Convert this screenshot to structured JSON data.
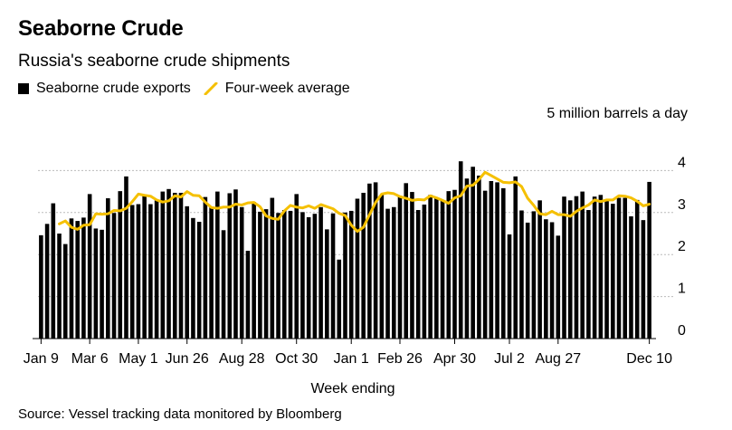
{
  "header": {
    "title": "Seaborne Crude",
    "subtitle": "Russia's seaborne crude shipments"
  },
  "legend": {
    "bars_label": "Seaborne crude exports",
    "line_label": "Four-week average"
  },
  "footer": {
    "source": "Source: Vessel tracking data monitored by Bloomberg"
  },
  "colors": {
    "bars": "#000000",
    "line": "#f5c000",
    "grid": "#bbbbbb"
  },
  "chart_data": {
    "type": "bar",
    "title": "Seaborne Crude",
    "subtitle": "Russia's seaborne crude shipments",
    "xlabel": "Week ending",
    "ylabel": "5 million barrels a day",
    "ylim": [
      0,
      5
    ],
    "yticks": [
      0,
      1,
      2,
      3,
      4
    ],
    "grid": true,
    "legend_position": "top-left",
    "x_tick_labels": [
      {
        "label": "Jan 9",
        "index": 0
      },
      {
        "label": "Mar 6",
        "index": 8
      },
      {
        "label": "May 1",
        "index": 16
      },
      {
        "label": "Jun 26",
        "index": 24
      },
      {
        "label": "Aug 28",
        "index": 33
      },
      {
        "label": "Oct 30",
        "index": 42
      },
      {
        "label": "Jan 1",
        "index": 51
      },
      {
        "label": "Feb 26",
        "index": 59
      },
      {
        "label": "Apr 30",
        "index": 68
      },
      {
        "label": "Jul 2",
        "index": 77
      },
      {
        "label": "Aug 27",
        "index": 85
      },
      {
        "label": "Dec 10",
        "index": 100
      }
    ],
    "series": [
      {
        "name": "Seaborne crude exports",
        "type": "bar",
        "values": [
          2.46,
          2.73,
          3.22,
          2.5,
          2.25,
          2.86,
          2.8,
          2.88,
          3.44,
          2.62,
          2.59,
          3.34,
          2.99,
          3.51,
          3.86,
          3.18,
          3.2,
          3.42,
          3.2,
          3.29,
          3.5,
          3.56,
          3.47,
          3.47,
          3.15,
          2.87,
          2.78,
          3.37,
          3.12,
          3.5,
          2.58,
          3.46,
          3.55,
          3.13,
          2.09,
          3.25,
          3.02,
          3.08,
          3.35,
          2.99,
          3.06,
          3.04,
          3.44,
          3.01,
          2.89,
          2.97,
          3.13,
          2.6,
          2.98,
          1.88,
          3.0,
          3.04,
          3.33,
          3.47,
          3.69,
          3.72,
          3.42,
          3.09,
          3.13,
          3.4,
          3.7,
          3.49,
          3.06,
          3.19,
          3.42,
          3.34,
          3.28,
          3.51,
          3.54,
          4.22,
          3.81,
          4.09,
          3.88,
          3.52,
          3.75,
          3.72,
          3.58,
          2.48,
          3.86,
          3.05,
          2.76,
          3.03,
          3.29,
          2.84,
          2.77,
          2.45,
          3.38,
          3.29,
          3.39,
          3.5,
          3.06,
          3.38,
          3.42,
          3.31,
          3.21,
          3.35,
          3.35,
          2.91,
          3.3,
          2.82,
          3.73
        ]
      },
      {
        "name": "Four-week average",
        "type": "line",
        "start_index": 3,
        "values": [
          2.73,
          2.8,
          2.65,
          2.6,
          2.7,
          2.71,
          2.97,
          2.96,
          2.97,
          3.05,
          3.04,
          3.1,
          3.26,
          3.44,
          3.41,
          3.39,
          3.3,
          3.25,
          3.28,
          3.4,
          3.37,
          3.5,
          3.41,
          3.4,
          3.25,
          3.12,
          3.1,
          3.13,
          3.13,
          3.2,
          3.18,
          3.23,
          3.24,
          3.14,
          2.92,
          2.86,
          2.84,
          3.04,
          3.17,
          3.13,
          3.11,
          3.16,
          3.1,
          3.19,
          3.14,
          3.09,
          2.98,
          2.93,
          2.7,
          2.55,
          2.65,
          2.95,
          3.24,
          3.44,
          3.47,
          3.45,
          3.38,
          3.34,
          3.29,
          3.31,
          3.3,
          3.4,
          3.35,
          3.29,
          3.22,
          3.35,
          3.4,
          3.63,
          3.65,
          3.79,
          3.96,
          3.88,
          3.8,
          3.72,
          3.71,
          3.73,
          3.62,
          3.34,
          3.17,
          2.97,
          2.95,
          3.03,
          2.95,
          2.95,
          2.91,
          3.03,
          3.11,
          3.18,
          3.3,
          3.26,
          3.3,
          3.3,
          3.4,
          3.39,
          3.35,
          3.27,
          3.16,
          3.2
        ]
      }
    ]
  }
}
